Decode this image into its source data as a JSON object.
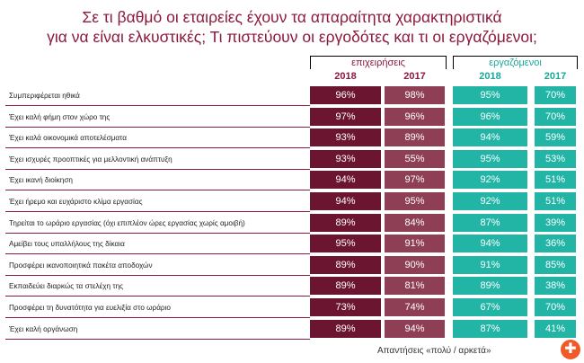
{
  "title_line1": "Σε τι βαθμό οι εταιρείες έχουν τα απαραίτητα χαρακτηριστικά",
  "title_line2": "για να είναι ελκυστικές;  Τι πιστεύουν οι εργοδότες και τι οι εργαζόμενοι;",
  "groups": {
    "employers": "επιχειρήσεις",
    "employees": "εργαζόμενοι"
  },
  "years": {
    "y2018": "2018",
    "y2017": "2017"
  },
  "footer": "Απαντήσεις «πολύ / αρκετά»",
  "logo_glyph": "✚",
  "colors": {
    "title": "#8b1a3c",
    "employers_2018": "#6b1530",
    "employers_2017": "#8e3f55",
    "employees": "#22b5a6"
  },
  "chart_data": {
    "type": "table",
    "title": "Σε τι βαθμό οι εταιρείες έχουν τα απαραίτητα χαρακτηριστικά για να είναι ελκυστικές;  Τι πιστεύουν οι εργοδότες και τι οι εργαζόμενοι;",
    "columns": [
      "επιχειρήσεις 2018",
      "επιχειρήσεις 2017",
      "εργαζόμενοι 2018",
      "εργαζόμενοι 2017"
    ],
    "rows": [
      {
        "label": "Συμπεριφέρεται ηθικά",
        "e2018": "96%",
        "e2017": "98%",
        "w2018": "95%",
        "w2017": "70%"
      },
      {
        "label": "Έχει καλή φήμη στον χώρο της",
        "e2018": "97%",
        "e2017": "96%",
        "w2018": "96%",
        "w2017": "70%"
      },
      {
        "label": "Έχει καλά οικονομικά αποτελέσματα",
        "e2018": "93%",
        "e2017": "89%",
        "w2018": "94%",
        "w2017": "59%"
      },
      {
        "label": "Έχει ισχυρές προοπτικές για μελλοντική ανάπτυξη",
        "e2018": "93%",
        "e2017": "55%",
        "w2018": "95%",
        "w2017": "53%"
      },
      {
        "label": "Έχει ικανή διοίκηση",
        "e2018": "94%",
        "e2017": "97%",
        "w2018": "92%",
        "w2017": "51%"
      },
      {
        "label": "Έχει ήρεμο και ευχάριστο κλίμα εργασίας",
        "e2018": "94%",
        "e2017": "95%",
        "w2018": "92%",
        "w2017": "51%"
      },
      {
        "label": "Τηρείται το ωράριο εργασίας (όχι επιπλέον ώρες εργασίας χωρίς αμοιβή)",
        "e2018": "89%",
        "e2017": "84%",
        "w2018": "87%",
        "w2017": "39%"
      },
      {
        "label": "Αμείβει τους υπαλλήλους της δίκαια",
        "e2018": "95%",
        "e2017": "91%",
        "w2018": "94%",
        "w2017": "36%"
      },
      {
        "label": "Προσφέρει ικανοποιητικά πακέτα αποδοχών",
        "e2018": "89%",
        "e2017": "90%",
        "w2018": "91%",
        "w2017": "85%"
      },
      {
        "label": "Εκπαιδεύει διαρκώς τα στελέχη της",
        "e2018": "89%",
        "e2017": "81%",
        "w2018": "89%",
        "w2017": "38%"
      },
      {
        "label": "Προσφέρει τη δυνατότητα για ευελιξία στο ωράριο",
        "e2018": "73%",
        "e2017": "74%",
        "w2018": "67%",
        "w2017": "70%"
      },
      {
        "label": "Έχει καλή οργάνωση",
        "e2018": "89%",
        "e2017": "94%",
        "w2018": "87%",
        "w2017": "41%"
      }
    ]
  }
}
